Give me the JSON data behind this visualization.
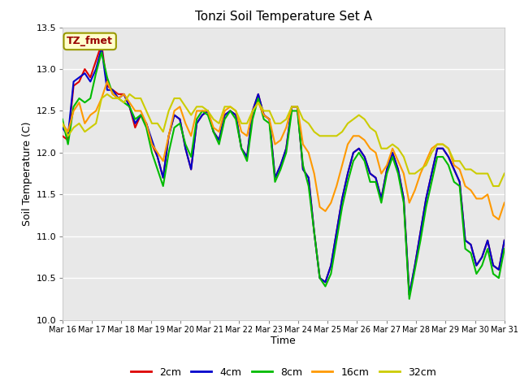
{
  "title": "Tonzi Soil Temperature Set A",
  "xlabel": "Time",
  "ylabel": "Soil Temperature (C)",
  "ylim": [
    10.0,
    13.5
  ],
  "annotation": "TZ_fmet",
  "annotation_color": "#990000",
  "annotation_bg": "#ffffcc",
  "annotation_border": "#999900",
  "legend_labels": [
    "2cm",
    "4cm",
    "8cm",
    "16cm",
    "32cm"
  ],
  "line_colors": [
    "#dd0000",
    "#0000cc",
    "#00bb00",
    "#ff9900",
    "#cccc00"
  ],
  "line_widths": [
    1.5,
    1.5,
    1.5,
    1.5,
    1.5
  ],
  "x_tick_labels": [
    "Mar 16",
    "Mar 17",
    "Mar 18",
    "Mar 19",
    "Mar 20",
    "Mar 21",
    "Mar 22",
    "Mar 23",
    "Mar 24",
    "Mar 25",
    "Mar 26",
    "Mar 27",
    "Mar 28",
    "Mar 29",
    "Mar 30",
    "Mar 31"
  ],
  "background_color": "#ffffff",
  "plot_bg_color": "#e8e8e8",
  "grid_color": "#ffffff",
  "y_ticks": [
    10.0,
    10.5,
    11.0,
    11.5,
    12.0,
    12.5,
    13.0,
    13.5
  ],
  "data_2cm": [
    12.2,
    12.15,
    12.8,
    12.85,
    13.0,
    12.9,
    13.1,
    13.3,
    12.8,
    12.75,
    12.7,
    12.7,
    12.55,
    12.3,
    12.45,
    12.35,
    12.1,
    11.95,
    11.7,
    12.2,
    12.45,
    12.4,
    12.05,
    11.8,
    12.35,
    12.45,
    12.5,
    12.25,
    12.15,
    12.45,
    12.5,
    12.45,
    12.05,
    11.95,
    12.5,
    12.7,
    12.45,
    12.4,
    11.7,
    11.85,
    12.05,
    12.55,
    12.55,
    11.8,
    11.7,
    11.05,
    10.5,
    10.45,
    10.65,
    11.05,
    11.45,
    11.75,
    12.0,
    12.05,
    11.95,
    11.75,
    11.7,
    11.45,
    11.8,
    12.0,
    11.8,
    11.45,
    10.3,
    10.65,
    11.05,
    11.45,
    11.75,
    12.05,
    12.05,
    11.95,
    11.8,
    11.65,
    10.95,
    10.9,
    10.65,
    10.75,
    10.95,
    10.65,
    10.6,
    10.95
  ],
  "data_4cm": [
    12.3,
    12.2,
    12.85,
    12.9,
    12.95,
    12.85,
    13.0,
    13.25,
    12.75,
    12.75,
    12.65,
    12.7,
    12.55,
    12.35,
    12.45,
    12.35,
    12.15,
    11.95,
    11.7,
    12.2,
    12.45,
    12.4,
    12.05,
    11.8,
    12.35,
    12.45,
    12.5,
    12.25,
    12.15,
    12.45,
    12.5,
    12.45,
    12.05,
    11.95,
    12.5,
    12.7,
    12.45,
    12.4,
    11.7,
    11.85,
    12.05,
    12.55,
    12.55,
    11.8,
    11.7,
    11.05,
    10.5,
    10.45,
    10.65,
    11.05,
    11.45,
    11.75,
    12.0,
    12.05,
    11.95,
    11.75,
    11.7,
    11.45,
    11.8,
    12.0,
    11.8,
    11.45,
    10.3,
    10.65,
    11.05,
    11.45,
    11.75,
    12.05,
    12.05,
    11.95,
    11.8,
    11.65,
    10.95,
    10.9,
    10.65,
    10.75,
    10.95,
    10.65,
    10.6,
    10.95
  ],
  "data_8cm": [
    12.4,
    12.1,
    12.55,
    12.65,
    12.6,
    12.65,
    12.95,
    13.2,
    12.9,
    12.7,
    12.65,
    12.6,
    12.55,
    12.4,
    12.45,
    12.3,
    12.0,
    11.8,
    11.6,
    12.0,
    12.3,
    12.35,
    12.1,
    11.95,
    12.4,
    12.5,
    12.45,
    12.25,
    12.1,
    12.4,
    12.5,
    12.4,
    12.05,
    11.9,
    12.4,
    12.65,
    12.4,
    12.35,
    11.65,
    11.8,
    12.0,
    12.5,
    12.5,
    11.85,
    11.6,
    11.05,
    10.5,
    10.4,
    10.55,
    10.95,
    11.35,
    11.65,
    11.9,
    12.0,
    11.9,
    11.65,
    11.65,
    11.4,
    11.75,
    11.95,
    11.75,
    11.4,
    10.25,
    10.6,
    10.95,
    11.35,
    11.65,
    11.95,
    11.95,
    11.85,
    11.65,
    11.6,
    10.85,
    10.8,
    10.55,
    10.65,
    10.85,
    10.55,
    10.5,
    10.85
  ],
  "data_16cm": [
    12.35,
    12.25,
    12.5,
    12.6,
    12.35,
    12.45,
    12.5,
    12.65,
    12.85,
    12.7,
    12.65,
    12.7,
    12.6,
    12.5,
    12.5,
    12.35,
    12.1,
    12.0,
    11.9,
    12.2,
    12.5,
    12.55,
    12.35,
    12.2,
    12.5,
    12.5,
    12.5,
    12.3,
    12.25,
    12.5,
    12.55,
    12.5,
    12.25,
    12.2,
    12.5,
    12.6,
    12.45,
    12.4,
    12.1,
    12.15,
    12.3,
    12.55,
    12.55,
    12.1,
    12.0,
    11.75,
    11.35,
    11.3,
    11.4,
    11.6,
    11.85,
    12.1,
    12.2,
    12.2,
    12.15,
    12.05,
    12.0,
    11.75,
    11.85,
    12.05,
    11.9,
    11.75,
    11.4,
    11.55,
    11.75,
    11.9,
    12.05,
    12.1,
    12.1,
    12.05,
    11.85,
    11.8,
    11.6,
    11.55,
    11.45,
    11.45,
    11.5,
    11.25,
    11.2,
    11.4
  ],
  "data_32cm": [
    12.35,
    12.2,
    12.3,
    12.35,
    12.25,
    12.3,
    12.35,
    12.65,
    12.7,
    12.65,
    12.65,
    12.6,
    12.7,
    12.65,
    12.65,
    12.5,
    12.35,
    12.35,
    12.25,
    12.5,
    12.65,
    12.65,
    12.55,
    12.45,
    12.55,
    12.55,
    12.5,
    12.4,
    12.35,
    12.55,
    12.55,
    12.5,
    12.35,
    12.35,
    12.5,
    12.6,
    12.5,
    12.5,
    12.35,
    12.35,
    12.4,
    12.55,
    12.55,
    12.4,
    12.35,
    12.25,
    12.2,
    12.2,
    12.2,
    12.2,
    12.25,
    12.35,
    12.4,
    12.45,
    12.4,
    12.3,
    12.25,
    12.05,
    12.05,
    12.1,
    12.05,
    11.95,
    11.75,
    11.75,
    11.8,
    11.85,
    12.0,
    12.1,
    12.1,
    12.05,
    11.9,
    11.9,
    11.8,
    11.8,
    11.75,
    11.75,
    11.75,
    11.6,
    11.6,
    11.75
  ]
}
